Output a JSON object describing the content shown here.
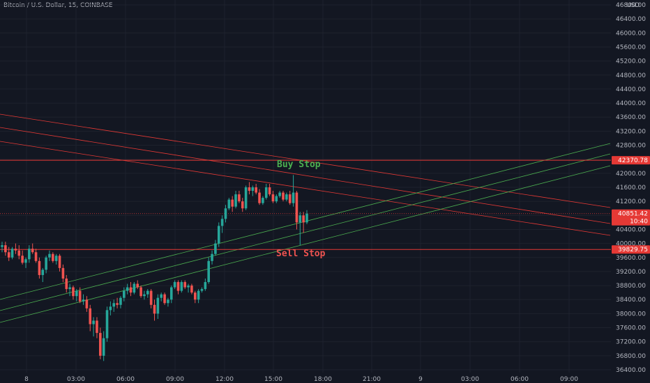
{
  "header": {
    "symbol_title": "Bitcoin / U.S. Dollar, 15, COINBASE",
    "currency": "USD"
  },
  "colors": {
    "background": "#131722",
    "grid": "#1e222d",
    "up": "#26a69a",
    "down": "#ef5350",
    "red_line": "#e53935",
    "green_line": "#4caf50",
    "text": "#b2b5be"
  },
  "chart_data": {
    "type": "candlestick",
    "y_axis_ticks": [
      "46800.00",
      "46400.00",
      "46000.00",
      "45600.00",
      "45200.00",
      "44800.00",
      "44400.00",
      "44000.00",
      "43600.00",
      "43200.00",
      "42800.00",
      "42400.00",
      "42000.00",
      "41600.00",
      "41200.00",
      "40800.00",
      "40400.00",
      "40000.00",
      "39600.00",
      "39200.00",
      "38800.00",
      "38400.00",
      "38000.00",
      "37600.00",
      "37200.00",
      "36800.00",
      "36400.00"
    ],
    "ylim": [
      36200,
      47000
    ],
    "x_axis_ticks": [
      "8",
      "03:00",
      "06:00",
      "09:00",
      "12:00",
      "15:00",
      "18:00",
      "21:00",
      "9",
      "03:00",
      "06:00",
      "09:00"
    ],
    "price_tags": [
      {
        "label": "42370.78",
        "value": 42370.78,
        "color": "#e53935"
      },
      {
        "label": "40851.42",
        "value": 40851.42,
        "color": "#e53935"
      },
      {
        "label": "10:40",
        "value": 40851.42,
        "color": "#e53935",
        "sub": true
      },
      {
        "label": "39829.75",
        "value": 39829.75,
        "color": "#e53935"
      }
    ],
    "horizontal_levels": [
      42370.78,
      39829.75
    ],
    "annotations": [
      {
        "text": "Buy Stop",
        "color": "#4caf50"
      },
      {
        "text": "Sell Stop",
        "color": "#ef5350"
      }
    ],
    "candles": [
      [
        39900,
        40050,
        39750,
        39950
      ],
      [
        39950,
        40050,
        39650,
        39750
      ],
      [
        39750,
        39900,
        39500,
        39600
      ],
      [
        39600,
        39900,
        39550,
        39850
      ],
      [
        39850,
        40000,
        39700,
        39800
      ],
      [
        39800,
        39950,
        39550,
        39650
      ],
      [
        39650,
        39800,
        39400,
        39450
      ],
      [
        39450,
        39600,
        39300,
        39550
      ],
      [
        39550,
        39950,
        39450,
        39850
      ],
      [
        39850,
        40000,
        39700,
        39750
      ],
      [
        39750,
        39850,
        39450,
        39500
      ],
      [
        39500,
        39600,
        39000,
        39100
      ],
      [
        39100,
        39300,
        38900,
        39250
      ],
      [
        39250,
        39650,
        39150,
        39600
      ],
      [
        39600,
        39800,
        39500,
        39700
      ],
      [
        39700,
        39750,
        39450,
        39500
      ],
      [
        39500,
        39700,
        39400,
        39650
      ],
      [
        39650,
        39700,
        39200,
        39300
      ],
      [
        39300,
        39400,
        38900,
        39000
      ],
      [
        39000,
        39100,
        38600,
        38700
      ],
      [
        38700,
        38850,
        38500,
        38750
      ],
      [
        38750,
        38800,
        38400,
        38500
      ],
      [
        38500,
        38700,
        38350,
        38650
      ],
      [
        38650,
        38750,
        38300,
        38350
      ],
      [
        38350,
        38550,
        38250,
        38400
      ],
      [
        38400,
        38500,
        38050,
        38150
      ],
      [
        38150,
        38250,
        37500,
        37700
      ],
      [
        37700,
        37900,
        37350,
        37800
      ],
      [
        37800,
        37900,
        37300,
        37450
      ],
      [
        37450,
        37600,
        36700,
        36800
      ],
      [
        36800,
        37500,
        36650,
        37300
      ],
      [
        37300,
        38200,
        37200,
        38100
      ],
      [
        38100,
        38350,
        37950,
        38200
      ],
      [
        38200,
        38400,
        38050,
        38300
      ],
      [
        38300,
        38450,
        38150,
        38250
      ],
      [
        38250,
        38500,
        38150,
        38450
      ],
      [
        38450,
        38750,
        38350,
        38650
      ],
      [
        38650,
        38850,
        38550,
        38750
      ],
      [
        38750,
        38900,
        38500,
        38600
      ],
      [
        38600,
        38900,
        38550,
        38850
      ],
      [
        38850,
        38950,
        38700,
        38750
      ],
      [
        38750,
        38800,
        38450,
        38500
      ],
      [
        38500,
        38650,
        38400,
        38550
      ],
      [
        38550,
        38700,
        38450,
        38650
      ],
      [
        38650,
        38700,
        38150,
        38250
      ],
      [
        38250,
        38400,
        37800,
        38000
      ],
      [
        38000,
        38550,
        37850,
        38450
      ],
      [
        38450,
        38600,
        38350,
        38550
      ],
      [
        38550,
        38600,
        38250,
        38300
      ],
      [
        38300,
        38450,
        38200,
        38400
      ],
      [
        38400,
        38800,
        38300,
        38750
      ],
      [
        38750,
        38950,
        38700,
        38900
      ],
      [
        38900,
        38950,
        38550,
        38650
      ],
      [
        38650,
        38950,
        38600,
        38900
      ],
      [
        38900,
        38950,
        38700,
        38750
      ],
      [
        38750,
        38850,
        38600,
        38800
      ],
      [
        38800,
        38850,
        38550,
        38600
      ],
      [
        38600,
        38650,
        38300,
        38400
      ],
      [
        38400,
        38700,
        38300,
        38650
      ],
      [
        38650,
        38750,
        38600,
        38700
      ],
      [
        38700,
        39000,
        38650,
        38900
      ],
      [
        38900,
        39600,
        38850,
        39500
      ],
      [
        39500,
        39800,
        39400,
        39700
      ],
      [
        39700,
        40100,
        39650,
        40000
      ],
      [
        40000,
        40600,
        39900,
        40500
      ],
      [
        40500,
        40800,
        40300,
        40700
      ],
      [
        40700,
        41100,
        40600,
        41000
      ],
      [
        41000,
        41300,
        40950,
        41250
      ],
      [
        41250,
        41350,
        40900,
        41050
      ],
      [
        41050,
        41500,
        41000,
        41400
      ],
      [
        41400,
        41500,
        41150,
        41200
      ],
      [
        41200,
        41300,
        40900,
        41000
      ],
      [
        41000,
        41650,
        40950,
        41600
      ],
      [
        41600,
        41750,
        41400,
        41500
      ],
      [
        41500,
        41650,
        41350,
        41600
      ],
      [
        41600,
        41700,
        41400,
        41450
      ],
      [
        41450,
        41550,
        41100,
        41150
      ],
      [
        41150,
        41350,
        41100,
        41300
      ],
      [
        41300,
        41700,
        41250,
        41600
      ],
      [
        41600,
        41700,
        41350,
        41400
      ],
      [
        41400,
        41500,
        41150,
        41200
      ],
      [
        41200,
        41400,
        41150,
        41350
      ],
      [
        41350,
        41500,
        41300,
        41450
      ],
      [
        41450,
        41500,
        41200,
        41250
      ],
      [
        41250,
        41450,
        41200,
        41400
      ],
      [
        41400,
        41500,
        41100,
        41150
      ],
      [
        41150,
        41950,
        41050,
        41450
      ],
      [
        41450,
        41500,
        40400,
        40600
      ],
      [
        40600,
        40900,
        39950,
        40800
      ],
      [
        40800,
        40900,
        40300,
        40600
      ],
      [
        40600,
        40950,
        40550,
        40850
      ]
    ]
  }
}
